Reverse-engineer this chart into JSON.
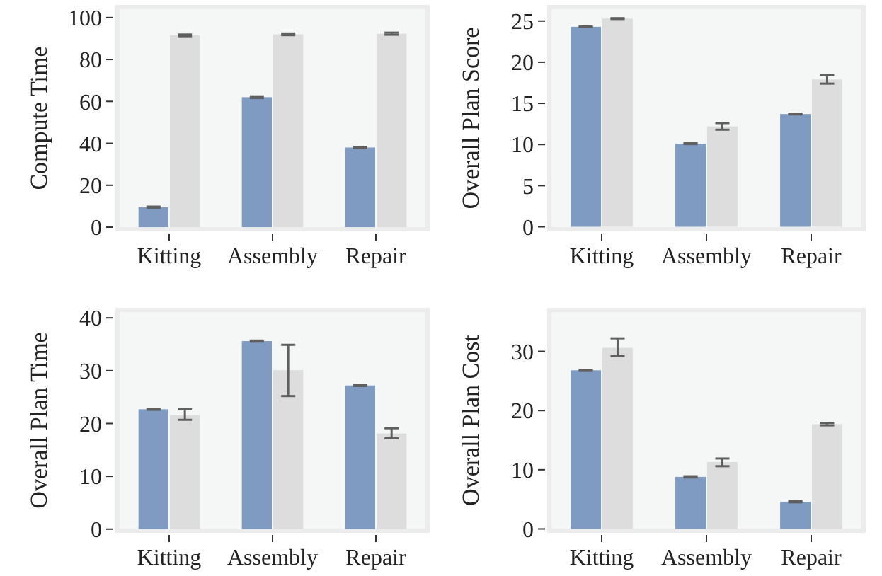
{
  "chart_data": [
    {
      "type": "bar",
      "ylabel": "Compute Time",
      "categories": [
        "Kitting",
        "Assembly",
        "Repair"
      ],
      "ylim": [
        -1,
        105
      ],
      "yticks": [
        0,
        20,
        40,
        60,
        80,
        100
      ],
      "series": [
        {
          "color": "#7f9bc2",
          "values": [
            9.5,
            62,
            38
          ],
          "errors": [
            0.3,
            0.4,
            0.3
          ]
        },
        {
          "color": "#dcdddc",
          "values": [
            91.5,
            92,
            92.3
          ],
          "errors": [
            0.4,
            0.4,
            0.5
          ]
        }
      ]
    },
    {
      "type": "bar",
      "ylabel": "Overall Plan Score",
      "categories": [
        "Kitting",
        "Assembly",
        "Repair"
      ],
      "ylim": [
        -0.3,
        26.7
      ],
      "yticks": [
        0,
        5,
        10,
        15,
        20,
        25
      ],
      "series": [
        {
          "color": "#7f9bc2",
          "values": [
            24.3,
            10.1,
            13.7
          ],
          "errors": [
            0.05,
            0.05,
            0.05
          ]
        },
        {
          "color": "#dcdddc",
          "values": [
            25.3,
            12.2,
            17.9
          ],
          "errors": [
            0.05,
            0.4,
            0.5
          ]
        }
      ]
    },
    {
      "type": "bar",
      "ylabel": "Overall Plan Time",
      "categories": [
        "Kitting",
        "Assembly",
        "Repair"
      ],
      "ylim": [
        -0.3,
        41.5
      ],
      "yticks": [
        0,
        10,
        20,
        30,
        40
      ],
      "series": [
        {
          "color": "#7f9bc2",
          "values": [
            22.7,
            35.6,
            27.2
          ],
          "errors": [
            0.1,
            0.1,
            0.1
          ]
        },
        {
          "color": "#dcdddc",
          "values": [
            21.6,
            30.1,
            18.1
          ],
          "errors": [
            [
              20.7,
              22.7
            ],
            [
              25.2,
              34.9
            ],
            [
              17.2,
              19.1
            ]
          ]
        }
      ]
    },
    {
      "type": "bar",
      "ylabel": "Overall Plan Cost",
      "categories": [
        "Kitting",
        "Assembly",
        "Repair"
      ],
      "ylim": [
        -0.3,
        37
      ],
      "yticks": [
        0,
        10,
        20,
        30
      ],
      "series": [
        {
          "color": "#7f9bc2",
          "values": [
            26.8,
            8.8,
            4.6
          ],
          "errors": [
            0.1,
            0.1,
            0.1
          ]
        },
        {
          "color": "#dcdddc",
          "values": [
            30.6,
            11.3,
            17.7
          ],
          "errors": [
            [
              29.2,
              32.2
            ],
            [
              10.6,
              11.9
            ],
            [
              17.5,
              17.9
            ]
          ]
        }
      ]
    }
  ]
}
